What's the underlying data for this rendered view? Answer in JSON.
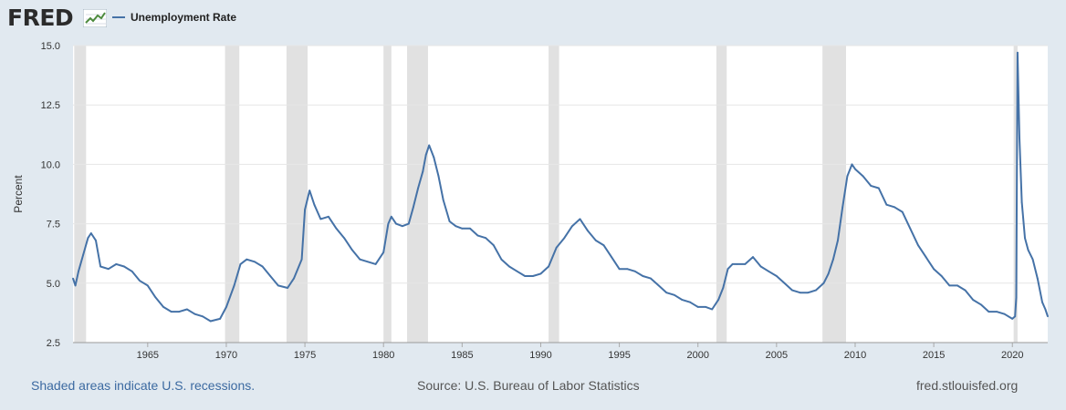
{
  "header": {
    "logo_text": "FRED",
    "legend_label": "Unemployment Rate"
  },
  "colors": {
    "series": "#4572a7",
    "recession": "#e1e1e1",
    "background": "#e1e9f0",
    "plot": "#ffffff",
    "grid": "#e6e6e6"
  },
  "footer": {
    "recessions_note": "Shaded areas indicate U.S. recessions.",
    "source": "Source: U.S. Bureau of Labor Statistics",
    "site": "fred.stlouisfed.org"
  },
  "chart_data": {
    "type": "line",
    "ylabel": "Percent",
    "ylim": [
      2.5,
      15.0
    ],
    "xlim": [
      1960.25,
      2022.25
    ],
    "yticks": [
      "2.5",
      "5.0",
      "7.5",
      "10.0",
      "12.5",
      "15.0"
    ],
    "xticks": [
      "1965",
      "1970",
      "1975",
      "1980",
      "1985",
      "1990",
      "1995",
      "2000",
      "2005",
      "2010",
      "2015",
      "2020"
    ],
    "grid": true,
    "legend_position": "top-left",
    "recessions": [
      [
        1960.33,
        1961.08
      ],
      [
        1969.92,
        1970.83
      ],
      [
        1973.83,
        1975.17
      ],
      [
        1980.0,
        1980.5
      ],
      [
        1981.5,
        1982.83
      ],
      [
        1990.5,
        1991.17
      ],
      [
        2001.17,
        2001.83
      ],
      [
        2007.92,
        2009.42
      ],
      [
        2020.08,
        2020.33
      ]
    ],
    "series": [
      {
        "name": "Unemployment Rate",
        "x": [
          1960.25,
          1960.4,
          1960.6,
          1960.9,
          1961.2,
          1961.4,
          1961.7,
          1962.0,
          1962.5,
          1963.0,
          1963.5,
          1964.0,
          1964.5,
          1965.0,
          1965.5,
          1966.0,
          1966.5,
          1967.0,
          1967.5,
          1968.0,
          1968.5,
          1969.0,
          1969.6,
          1970.0,
          1970.5,
          1970.9,
          1971.3,
          1971.8,
          1972.3,
          1972.8,
          1973.3,
          1973.9,
          1974.3,
          1974.8,
          1975.0,
          1975.3,
          1975.6,
          1976.0,
          1976.5,
          1977.0,
          1977.5,
          1978.0,
          1978.5,
          1979.0,
          1979.5,
          1980.0,
          1980.3,
          1980.5,
          1980.8,
          1981.2,
          1981.6,
          1981.9,
          1982.2,
          1982.5,
          1982.7,
          1982.9,
          1983.2,
          1983.5,
          1983.8,
          1984.2,
          1984.6,
          1985.0,
          1985.5,
          1986.0,
          1986.5,
          1987.0,
          1987.5,
          1988.0,
          1988.5,
          1989.0,
          1989.5,
          1990.0,
          1990.5,
          1991.0,
          1991.5,
          1992.0,
          1992.5,
          1993.0,
          1993.5,
          1994.0,
          1994.5,
          1995.0,
          1995.5,
          1996.0,
          1996.5,
          1997.0,
          1997.5,
          1998.0,
          1998.5,
          1999.0,
          1999.5,
          2000.0,
          2000.5,
          2000.9,
          2001.3,
          2001.6,
          2001.9,
          2002.2,
          2002.5,
          2003.0,
          2003.5,
          2004.0,
          2004.5,
          2005.0,
          2005.5,
          2006.0,
          2006.5,
          2007.0,
          2007.5,
          2008.0,
          2008.3,
          2008.6,
          2008.9,
          2009.2,
          2009.5,
          2009.8,
          2010.0,
          2010.5,
          2011.0,
          2011.5,
          2012.0,
          2012.5,
          2013.0,
          2013.5,
          2014.0,
          2014.5,
          2015.0,
          2015.5,
          2016.0,
          2016.5,
          2017.0,
          2017.5,
          2018.0,
          2018.5,
          2019.0,
          2019.5,
          2020.0,
          2020.17,
          2020.25,
          2020.33,
          2020.45,
          2020.6,
          2020.8,
          2021.0,
          2021.3,
          2021.6,
          2021.9,
          2022.1,
          2022.25
        ],
        "values": [
          5.2,
          4.9,
          5.5,
          6.2,
          6.9,
          7.1,
          6.8,
          5.7,
          5.6,
          5.8,
          5.7,
          5.5,
          5.1,
          4.9,
          4.4,
          4.0,
          3.8,
          3.8,
          3.9,
          3.7,
          3.6,
          3.4,
          3.5,
          4.0,
          4.9,
          5.8,
          6.0,
          5.9,
          5.7,
          5.3,
          4.9,
          4.8,
          5.2,
          6.0,
          8.1,
          8.9,
          8.3,
          7.7,
          7.8,
          7.3,
          6.9,
          6.4,
          6.0,
          5.9,
          5.8,
          6.3,
          7.5,
          7.8,
          7.5,
          7.4,
          7.5,
          8.2,
          9.0,
          9.7,
          10.4,
          10.8,
          10.3,
          9.5,
          8.5,
          7.6,
          7.4,
          7.3,
          7.3,
          7.0,
          6.9,
          6.6,
          6.0,
          5.7,
          5.5,
          5.3,
          5.3,
          5.4,
          5.7,
          6.5,
          6.9,
          7.4,
          7.7,
          7.2,
          6.8,
          6.6,
          6.1,
          5.6,
          5.6,
          5.5,
          5.3,
          5.2,
          4.9,
          4.6,
          4.5,
          4.3,
          4.2,
          4.0,
          4.0,
          3.9,
          4.3,
          4.8,
          5.6,
          5.8,
          5.8,
          5.8,
          6.1,
          5.7,
          5.5,
          5.3,
          5.0,
          4.7,
          4.6,
          4.6,
          4.7,
          5.0,
          5.4,
          6.0,
          6.8,
          8.2,
          9.5,
          10.0,
          9.8,
          9.5,
          9.1,
          9.0,
          8.3,
          8.2,
          8.0,
          7.3,
          6.6,
          6.1,
          5.6,
          5.3,
          4.9,
          4.9,
          4.7,
          4.3,
          4.1,
          3.8,
          3.8,
          3.7,
          3.5,
          3.6,
          4.4,
          14.7,
          11.1,
          8.4,
          6.9,
          6.4,
          6.0,
          5.2,
          4.2,
          3.9,
          3.6
        ]
      }
    ]
  }
}
